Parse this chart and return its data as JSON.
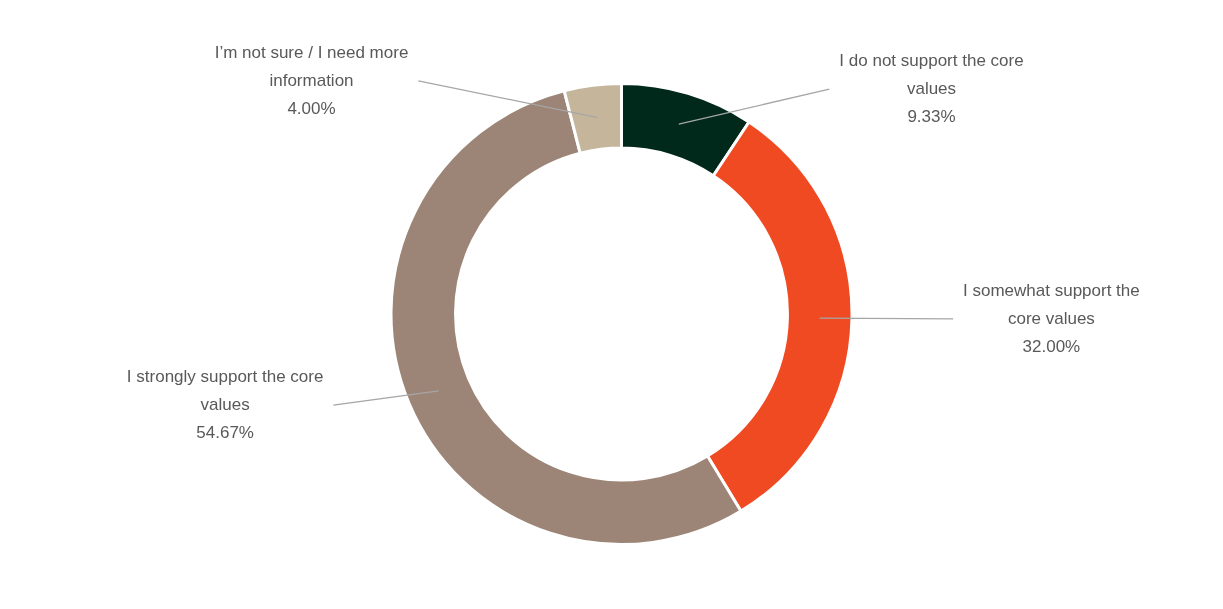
{
  "chart_data": {
    "type": "donut",
    "categories": [
      "I do not support the core values",
      "I somewhat support the core values",
      "I strongly support the core values",
      "I’m not sure / I need more information"
    ],
    "values": [
      9.33,
      32.0,
      54.67,
      4.0
    ],
    "colors": [
      "#00291c",
      "#f04a23",
      "#9c8576",
      "#c5b59b"
    ],
    "value_labels": [
      "9.33%",
      "32.00%",
      "54.67%",
      "4.00%"
    ],
    "legend": false
  }
}
